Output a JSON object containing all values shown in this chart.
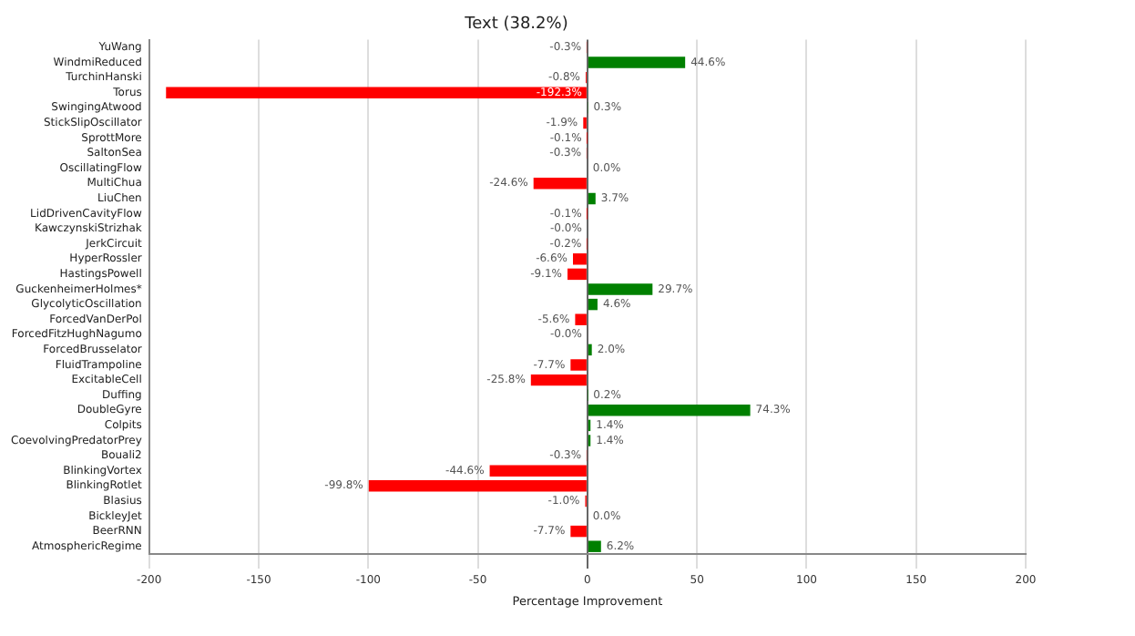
{
  "chart_data": {
    "type": "bar",
    "orientation": "horizontal",
    "title": "Text (38.2%)",
    "xlabel": "Percentage Improvement",
    "categories": [
      "YuWang",
      "WindmiReduced",
      "TurchinHanski",
      "Torus",
      "SwingingAtwood",
      "StickSlipOscillator",
      "SprottMore",
      "SaltonSea",
      "OscillatingFlow",
      "MultiChua",
      "LiuChen",
      "LidDrivenCavityFlow",
      "KawczynskiStrizhak",
      "JerkCircuit",
      "HyperRossler",
      "HastingsPowell",
      "GuckenheimerHolmes*",
      "GlycolyticOscillation",
      "ForcedVanDerPol",
      "ForcedFitzHughNagumo",
      "ForcedBrusselator",
      "FluidTrampoline",
      "ExcitableCell",
      "Duffing",
      "DoubleGyre",
      "Colpits",
      "CoevolvingPredatorPrey",
      "Bouali2",
      "BlinkingVortex",
      "BlinkingRotlet",
      "Blasius",
      "BickleyJet",
      "BeerRNN",
      "AtmosphericRegime"
    ],
    "values": [
      -0.3,
      44.6,
      -0.8,
      -192.3,
      0.3,
      -1.9,
      -0.1,
      -0.3,
      0.0,
      -24.6,
      3.7,
      -0.1,
      -0.0,
      -0.2,
      -6.6,
      -9.1,
      29.7,
      4.6,
      -5.6,
      -0.0,
      2.0,
      -7.7,
      -25.8,
      0.2,
      74.3,
      1.4,
      1.4,
      -0.3,
      -44.6,
      -99.8,
      -1.0,
      0.0,
      -7.7,
      6.2
    ],
    "value_labels": [
      "-0.3%",
      "44.6%",
      "-0.8%",
      "-192.3%",
      "0.3%",
      "-1.9%",
      "-0.1%",
      "-0.3%",
      "0.0%",
      "-24.6%",
      "3.7%",
      "-0.1%",
      "-0.0%",
      "-0.2%",
      "-6.6%",
      "-9.1%",
      "29.7%",
      "4.6%",
      "-5.6%",
      "-0.0%",
      "2.0%",
      "-7.7%",
      "-25.8%",
      "0.2%",
      "74.3%",
      "1.4%",
      "1.4%",
      "-0.3%",
      "-44.6%",
      "-99.8%",
      "-1.0%",
      "0.0%",
      "-7.7%",
      "6.2%"
    ],
    "colors": [
      "#ff0000",
      "#008000",
      "#ff0000",
      "#ff0000",
      "#008000",
      "#ff0000",
      "#ff0000",
      "#ff0000",
      "#008000",
      "#ff0000",
      "#008000",
      "#ff0000",
      "#ff0000",
      "#ff0000",
      "#ff0000",
      "#ff0000",
      "#008000",
      "#008000",
      "#ff0000",
      "#ff0000",
      "#008000",
      "#ff0000",
      "#ff0000",
      "#008000",
      "#008000",
      "#008000",
      "#008000",
      "#ff0000",
      "#ff0000",
      "#ff0000",
      "#ff0000",
      "#008000",
      "#ff0000",
      "#008000"
    ],
    "xlim": [
      -200,
      200
    ],
    "xticks": [
      -200,
      -150,
      -100,
      -50,
      0,
      50,
      100,
      150,
      200
    ],
    "grid": "x",
    "legend": false
  }
}
